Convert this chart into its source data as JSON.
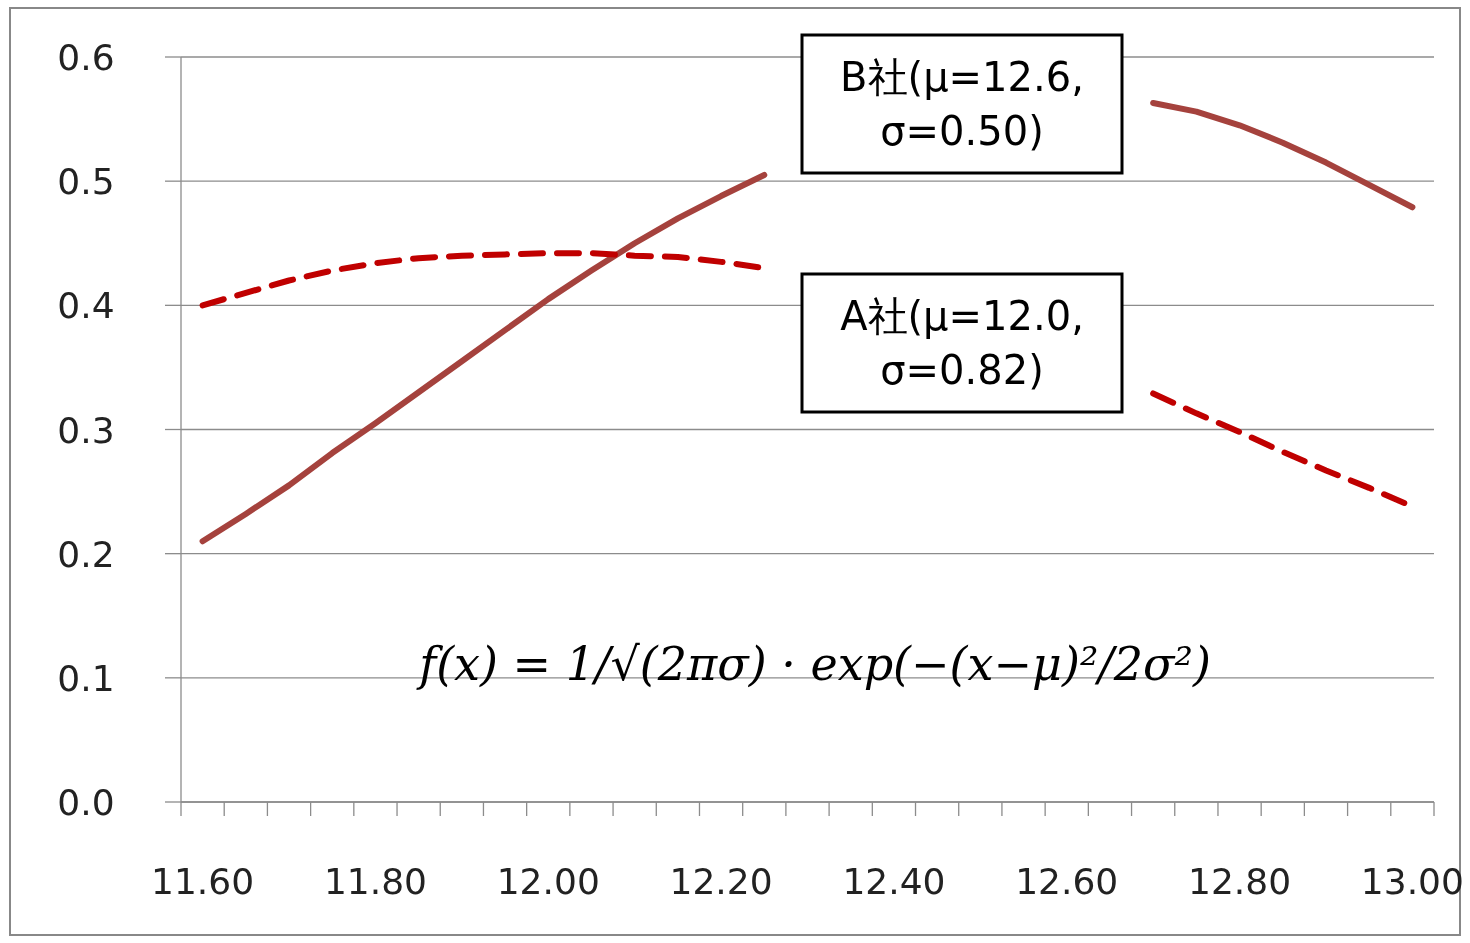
{
  "chart_data": {
    "type": "line",
    "categories": [
      "11.60",
      null,
      null,
      null,
      "11.80",
      null,
      null,
      null,
      "12.00",
      null,
      null,
      null,
      "12.20",
      null,
      null,
      null,
      "12.40",
      null,
      null,
      null,
      "12.60",
      null,
      null,
      null,
      "12.80",
      null,
      null,
      null,
      "13.00"
    ],
    "series": [
      {
        "name": "B社(μ=12.6, σ=0.50)",
        "color": "#a5423d",
        "line_style": "solid",
        "values": [
          0.21,
          0.232,
          0.255,
          0.281,
          0.305,
          0.33,
          0.355,
          0.38,
          0.405,
          0.428,
          0.45,
          0.47,
          0.488,
          0.505,
          null,
          null,
          null,
          null,
          null,
          null,
          null,
          null,
          0.563,
          0.556,
          0.545,
          0.531,
          0.515,
          0.497,
          0.479
        ]
      },
      {
        "name": "A社(μ=12.0, σ=0.82)",
        "color": "#c00000",
        "line_style": "dashed",
        "values": [
          0.4,
          0.41,
          0.42,
          0.428,
          0.434,
          0.438,
          0.44,
          0.441,
          0.442,
          0.442,
          0.44,
          0.439,
          0.435,
          0.43,
          null,
          null,
          null,
          null,
          null,
          null,
          null,
          null,
          0.329,
          0.313,
          0.298,
          0.282,
          0.267,
          0.253,
          0.238
        ]
      }
    ],
    "ylim": [
      0,
      0.6
    ],
    "yticks": [
      {
        "value": 0,
        "label": "0.0"
      },
      0.1,
      0.2,
      0.3,
      0.4,
      0.5,
      0.6
    ],
    "grid": "y",
    "marker": "none",
    "annotations": [
      "f(x) = 1/√(2πσ) · exp(−(x−μ)²/2σ²)"
    ]
  }
}
